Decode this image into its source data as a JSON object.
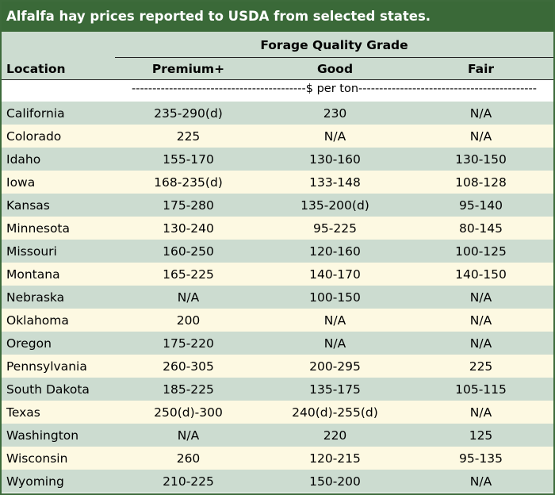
{
  "title": "Alfalfa hay prices reported to USDA from selected states.",
  "header": {
    "group_label": "Forage Quality Grade",
    "location_label": "Location",
    "columns": [
      "Premium+",
      "Good",
      "Fair"
    ],
    "units": "------------------------------------------$ per ton-------------------------------------------"
  },
  "rows": [
    {
      "location": "California",
      "premium": "235-290(d)",
      "good": "230",
      "fair": "N/A"
    },
    {
      "location": "Colorado",
      "premium": "225",
      "good": "N/A",
      "fair": "N/A"
    },
    {
      "location": "Idaho",
      "premium": "155-170",
      "good": "130-160",
      "fair": "130-150"
    },
    {
      "location": "Iowa",
      "premium": "168-235(d)",
      "good": "133-148",
      "fair": "108-128"
    },
    {
      "location": "Kansas",
      "premium": "175-280",
      "good": "135-200(d)",
      "fair": "95-140"
    },
    {
      "location": "Minnesota",
      "premium": "130-240",
      "good": "95-225",
      "fair": "80-145"
    },
    {
      "location": "Missouri",
      "premium": "160-250",
      "good": "120-160",
      "fair": "100-125"
    },
    {
      "location": "Montana",
      "premium": "165-225",
      "good": "140-170",
      "fair": "140-150"
    },
    {
      "location": "Nebraska",
      "premium": "N/A",
      "good": "100-150",
      "fair": "N/A"
    },
    {
      "location": "Oklahoma",
      "premium": "200",
      "good": "N/A",
      "fair": "N/A"
    },
    {
      "location": "Oregon",
      "premium": "175-220",
      "good": "N/A",
      "fair": "N/A"
    },
    {
      "location": "Pennsylvania",
      "premium": "260-305",
      "good": "200-295",
      "fair": "225"
    },
    {
      "location": "South Dakota",
      "premium": "185-225",
      "good": "135-175",
      "fair": "105-115"
    },
    {
      "location": "Texas",
      "premium": "250(d)-300",
      "good": "240(d)-255(d)",
      "fair": "N/A"
    },
    {
      "location": "Washington",
      "premium": "N/A",
      "good": "220",
      "fair": "125"
    },
    {
      "location": "Wisconsin",
      "premium": "260",
      "good": "120-215",
      "fair": "95-135"
    },
    {
      "location": "Wyoming",
      "premium": "210-225",
      "good": "150-200",
      "fair": "N/A"
    }
  ]
}
